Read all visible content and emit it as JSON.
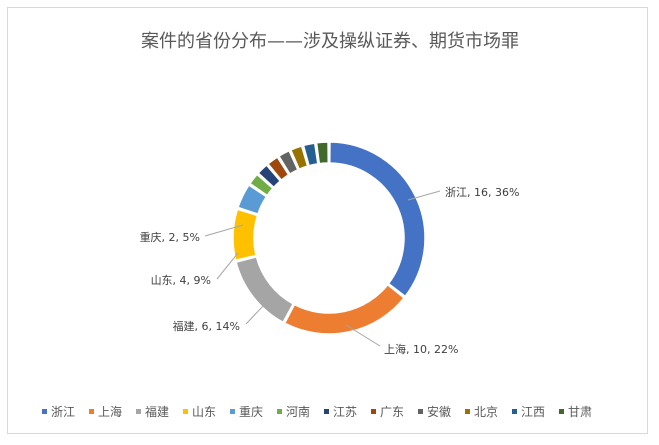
{
  "chart_data": {
    "type": "pie",
    "title": "案件的省份分布——涉及操纵证券、期货市场罪",
    "categories": [
      "浙江",
      "上海",
      "福建",
      "山东",
      "重庆",
      "河南",
      "江苏",
      "广东",
      "安徽",
      "北京",
      "江西",
      "甘肃"
    ],
    "values": [
      16,
      10,
      6,
      4,
      2,
      1,
      1,
      1,
      1,
      1,
      1,
      1
    ],
    "colors": [
      "#4472C4",
      "#ED7D31",
      "#A5A5A5",
      "#FFC000",
      "#5B9BD5",
      "#70AD47",
      "#264478",
      "#9E480E",
      "#636363",
      "#997300",
      "#255E91",
      "#43682B"
    ],
    "data_labels": [
      {
        "category": "浙江",
        "text": "浙江, 16, 36%"
      },
      {
        "category": "上海",
        "text": "上海, 10, 22%"
      },
      {
        "category": "福建",
        "text": "福建, 6, 14%"
      },
      {
        "category": "山东",
        "text": "山东, 4, 9%"
      },
      {
        "category": "重庆",
        "text": "重庆, 2, 5%"
      }
    ],
    "legend_position": "bottom"
  }
}
